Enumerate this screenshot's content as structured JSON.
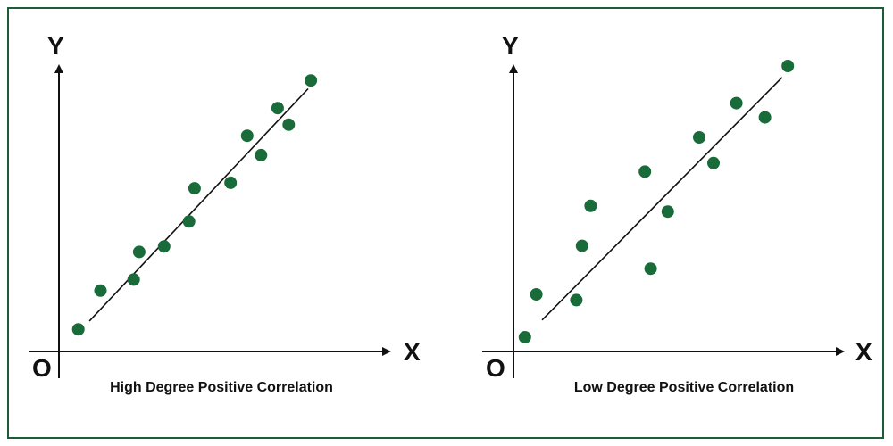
{
  "colors": {
    "point": "#1a6b3a",
    "axis": "#111111",
    "border": "#1e5c38"
  },
  "chart_data": [
    {
      "type": "scatter",
      "title": "High Degree Positive Correlation",
      "xlabel": "X",
      "ylabel": "Y",
      "origin_label": "O",
      "xlim": [
        0,
        10
      ],
      "ylim": [
        0,
        10
      ],
      "grid": false,
      "points": [
        {
          "x": 0.7,
          "y": 0.8
        },
        {
          "x": 1.5,
          "y": 2.2
        },
        {
          "x": 2.7,
          "y": 2.6
        },
        {
          "x": 2.9,
          "y": 3.6
        },
        {
          "x": 3.8,
          "y": 3.8
        },
        {
          "x": 4.7,
          "y": 4.7
        },
        {
          "x": 4.9,
          "y": 5.9
        },
        {
          "x": 6.2,
          "y": 6.1
        },
        {
          "x": 6.8,
          "y": 7.8
        },
        {
          "x": 7.3,
          "y": 7.1
        },
        {
          "x": 7.9,
          "y": 8.8
        },
        {
          "x": 8.3,
          "y": 8.2
        },
        {
          "x": 9.1,
          "y": 9.8
        }
      ],
      "trendline": {
        "x1": 1.1,
        "y1": 1.1,
        "x2": 9.0,
        "y2": 9.5
      }
    },
    {
      "type": "scatter",
      "title": "Low Degree Positive Correlation",
      "xlabel": "X",
      "ylabel": "Y",
      "origin_label": "O",
      "xlim": [
        0,
        10
      ],
      "ylim": [
        0,
        10
      ],
      "grid": false,
      "points": [
        {
          "x": 0.4,
          "y": 0.5
        },
        {
          "x": 0.8,
          "y": 2.0
        },
        {
          "x": 2.2,
          "y": 1.8
        },
        {
          "x": 2.4,
          "y": 3.7
        },
        {
          "x": 2.7,
          "y": 5.1
        },
        {
          "x": 4.6,
          "y": 6.3
        },
        {
          "x": 4.8,
          "y": 2.9
        },
        {
          "x": 5.4,
          "y": 4.9
        },
        {
          "x": 6.5,
          "y": 7.5
        },
        {
          "x": 7.0,
          "y": 6.6
        },
        {
          "x": 7.8,
          "y": 8.7
        },
        {
          "x": 8.8,
          "y": 8.2
        },
        {
          "x": 9.6,
          "y": 10.0
        }
      ],
      "trendline": {
        "x1": 1.0,
        "y1": 1.1,
        "x2": 9.4,
        "y2": 9.6
      }
    }
  ]
}
